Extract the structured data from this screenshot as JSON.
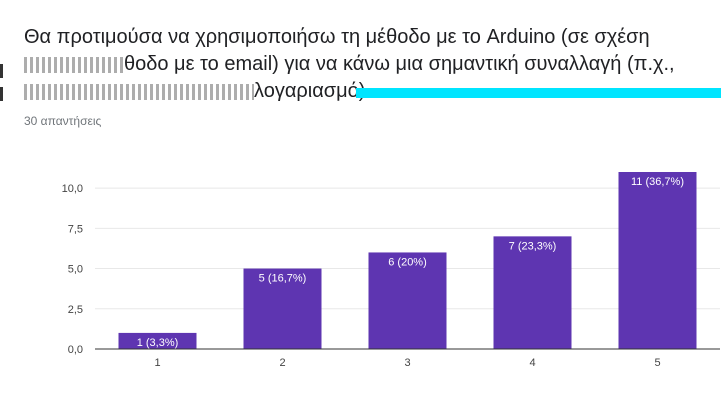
{
  "question": {
    "line1": "Θα προτιμούσα να χρησιμοποιήσω τη μέθοδο με το Arduino (σε σχέση",
    "line2": "θοδο με το email) για να κάνω μια σημαντική συναλλαγή (π.χ.,",
    "line3": "λογαριασμό)."
  },
  "responses_label": "30 απαντήσεις",
  "colors": {
    "bar": "#5e35b1",
    "grid": "#e8e8e8",
    "axis": "#333333",
    "highlight": "#00e5ff"
  },
  "chart_data": {
    "type": "bar",
    "categories": [
      "1",
      "2",
      "3",
      "4",
      "5"
    ],
    "values": [
      1,
      5,
      6,
      7,
      11
    ],
    "data_labels": [
      "1 (3,3%)",
      "5 (16,7%)",
      "6 (20%)",
      "7 (23,3%)",
      "11 (36,7%)"
    ],
    "yticks": [
      "0,0",
      "2,5",
      "5,0",
      "7,5",
      "10,0"
    ],
    "ytick_values": [
      0,
      2.5,
      5,
      7.5,
      10
    ],
    "ylim": [
      0,
      11
    ],
    "grid": true,
    "title": "",
    "xlabel": "",
    "ylabel": ""
  }
}
